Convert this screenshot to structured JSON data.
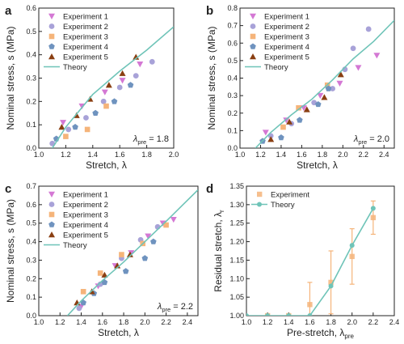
{
  "colors": {
    "exp1": "#d478d4",
    "exp2": "#a8a2d8",
    "exp3": "#f5b47a",
    "exp4": "#6f93bf",
    "exp5": "#8a3f12",
    "theory": "#6fc4b8",
    "axis": "#222222"
  },
  "chart_data": [
    {
      "panel": "a",
      "type": "scatter",
      "xlabel": "Stretch, λ",
      "ylabel": "Nominal stress, s (MPa)",
      "xlim": [
        1.0,
        2.0
      ],
      "ylim": [
        0.0,
        0.6
      ],
      "xticks": [
        "1.0",
        "1.2",
        "1.4",
        "1.6",
        "1.8",
        "2.0"
      ],
      "yticks": [
        "0.0",
        "0.1",
        "0.2",
        "0.3",
        "0.4",
        "0.5",
        "0.6"
      ],
      "annotation": {
        "lambda": "λ",
        "sub": "pre",
        "value": "= 1.8"
      },
      "legend_position": "top-left",
      "series": [
        {
          "name": "Experiment 1",
          "marker": "triangle-down",
          "color_key": "exp1",
          "points": [
            [
              1.18,
              0.11
            ],
            [
              1.32,
              0.18
            ],
            [
              1.49,
              0.24
            ],
            [
              1.62,
              0.29
            ],
            [
              1.75,
              0.36
            ]
          ]
        },
        {
          "name": "Experiment 2",
          "marker": "circle",
          "color_key": "exp2",
          "points": [
            [
              1.1,
              0.02
            ],
            [
              1.22,
              0.08
            ],
            [
              1.35,
              0.13
            ],
            [
              1.48,
              0.2
            ],
            [
              1.6,
              0.26
            ],
            [
              1.72,
              0.31
            ],
            [
              1.84,
              0.37
            ]
          ]
        },
        {
          "name": "Experiment 3",
          "marker": "square",
          "color_key": "exp3",
          "points": [
            [
              1.2,
              0.05
            ],
            [
              1.36,
              0.08
            ],
            [
              1.5,
              0.18
            ]
          ]
        },
        {
          "name": "Experiment 4",
          "marker": "pentagon",
          "color_key": "exp4",
          "points": [
            [
              1.13,
              0.04
            ],
            [
              1.27,
              0.09
            ],
            [
              1.42,
              0.15
            ],
            [
              1.56,
              0.2
            ],
            [
              1.68,
              0.27
            ]
          ]
        },
        {
          "name": "Experiment 5",
          "marker": "triangle-up",
          "color_key": "exp5",
          "points": [
            [
              1.17,
              0.09
            ],
            [
              1.28,
              0.14
            ],
            [
              1.38,
              0.21
            ],
            [
              1.52,
              0.27
            ],
            [
              1.62,
              0.32
            ],
            [
              1.72,
              0.39
            ]
          ]
        },
        {
          "name": "Theory",
          "marker": "line",
          "color_key": "theory",
          "points": [
            [
              1.1,
              0.0
            ],
            [
              1.2,
              0.09
            ],
            [
              1.4,
              0.23
            ],
            [
              1.6,
              0.33
            ],
            [
              1.8,
              0.42
            ],
            [
              2.0,
              0.52
            ]
          ]
        }
      ]
    },
    {
      "panel": "b",
      "type": "scatter",
      "xlabel": "Stretch, λ",
      "ylabel": "Nominal stress, s (MPa)",
      "xlim": [
        1.0,
        2.5
      ],
      "ylim": [
        0.0,
        0.8
      ],
      "xticks": [
        "1.0",
        "1.2",
        "1.4",
        "1.6",
        "1.8",
        "2.0",
        "2.2",
        "2.4"
      ],
      "yticks": [
        "0.0",
        "0.1",
        "0.2",
        "0.3",
        "0.4",
        "0.5",
        "0.6",
        "0.7",
        "0.8"
      ],
      "annotation": {
        "lambda": "λ",
        "sub": "pre",
        "value": "= 2.0"
      },
      "legend_position": "top-left",
      "series": [
        {
          "name": "Experiment 1",
          "marker": "triangle-down",
          "color_key": "exp1",
          "points": [
            [
              1.25,
              0.09
            ],
            [
              1.45,
              0.16
            ],
            [
              1.62,
              0.23
            ],
            [
              1.78,
              0.3
            ],
            [
              1.97,
              0.37
            ],
            [
              2.15,
              0.46
            ],
            [
              2.33,
              0.53
            ]
          ]
        },
        {
          "name": "Experiment 2",
          "marker": "circle",
          "color_key": "exp2",
          "points": [
            [
              1.3,
              0.07
            ],
            [
              1.5,
              0.14
            ],
            [
              1.72,
              0.26
            ],
            [
              1.9,
              0.34
            ],
            [
              2.02,
              0.45
            ],
            [
              2.1,
              0.57
            ],
            [
              2.25,
              0.68
            ]
          ]
        },
        {
          "name": "Experiment 3",
          "marker": "square",
          "color_key": "exp3",
          "points": [
            [
              1.42,
              0.12
            ],
            [
              1.57,
              0.23
            ],
            [
              1.85,
              0.36
            ]
          ]
        },
        {
          "name": "Experiment 4",
          "marker": "pentagon",
          "color_key": "exp4",
          "points": [
            [
              1.22,
              0.04
            ],
            [
              1.4,
              0.06
            ],
            [
              1.58,
              0.16
            ],
            [
              1.76,
              0.25
            ],
            [
              1.86,
              0.34
            ]
          ]
        },
        {
          "name": "Experiment 5",
          "marker": "triangle-up",
          "color_key": "exp5",
          "points": [
            [
              1.3,
              0.05
            ],
            [
              1.48,
              0.15
            ],
            [
              1.65,
              0.22
            ],
            [
              1.82,
              0.29
            ],
            [
              1.98,
              0.42
            ]
          ]
        },
        {
          "name": "Theory",
          "marker": "line",
          "color_key": "theory",
          "points": [
            [
              1.15,
              0.0
            ],
            [
              1.3,
              0.09
            ],
            [
              1.5,
              0.19
            ],
            [
              1.7,
              0.28
            ],
            [
              1.9,
              0.39
            ],
            [
              2.1,
              0.51
            ],
            [
              2.3,
              0.61
            ],
            [
              2.5,
              0.73
            ]
          ]
        }
      ]
    },
    {
      "panel": "c",
      "type": "scatter",
      "xlabel": "Stretch, λ",
      "ylabel": "Nominal stress, s (MPa)",
      "xlim": [
        1.0,
        2.5
      ],
      "ylim": [
        0.0,
        0.7
      ],
      "xticks": [
        "1.0",
        "1.2",
        "1.4",
        "1.6",
        "1.8",
        "2.0",
        "2.2",
        "2.4"
      ],
      "yticks": [
        "0.0",
        "0.1",
        "0.2",
        "0.3",
        "0.4",
        "0.5",
        "0.6",
        "0.7"
      ],
      "annotation": {
        "lambda": "λ",
        "sub": "pre",
        "value": "= 2.2"
      },
      "legend_position": "top-left",
      "series": [
        {
          "name": "Experiment 1",
          "marker": "triangle-down",
          "color_key": "exp1",
          "points": [
            [
              1.4,
              0.05
            ],
            [
              1.56,
              0.16
            ],
            [
              1.72,
              0.27
            ],
            [
              1.87,
              0.34
            ],
            [
              2.03,
              0.43
            ],
            [
              2.17,
              0.5
            ],
            [
              2.27,
              0.52
            ]
          ]
        },
        {
          "name": "Experiment 2",
          "marker": "circle",
          "color_key": "exp2",
          "points": [
            [
              1.38,
              0.04
            ],
            [
              1.58,
              0.17
            ],
            [
              1.78,
              0.31
            ],
            [
              1.96,
              0.41
            ],
            [
              2.12,
              0.48
            ]
          ]
        },
        {
          "name": "Experiment 3",
          "marker": "square",
          "color_key": "exp3",
          "points": [
            [
              1.42,
              0.13
            ],
            [
              1.58,
              0.23
            ],
            [
              1.78,
              0.33
            ],
            [
              1.98,
              0.39
            ],
            [
              2.2,
              0.49
            ]
          ]
        },
        {
          "name": "Experiment 4",
          "marker": "pentagon",
          "color_key": "exp4",
          "points": [
            [
              1.42,
              0.07
            ],
            [
              1.52,
              0.12
            ],
            [
              1.62,
              0.18
            ],
            [
              1.82,
              0.24
            ],
            [
              2.0,
              0.31
            ],
            [
              2.08,
              0.4
            ]
          ]
        },
        {
          "name": "Experiment 5",
          "marker": "triangle-up",
          "color_key": "exp5",
          "points": [
            [
              1.36,
              0.07
            ],
            [
              1.5,
              0.13
            ],
            [
              1.62,
              0.22
            ],
            [
              1.74,
              0.27
            ],
            [
              1.86,
              0.33
            ]
          ]
        },
        {
          "name": "Theory",
          "marker": "line",
          "color_key": "theory",
          "points": [
            [
              1.27,
              0.0
            ],
            [
              1.4,
              0.08
            ],
            [
              1.6,
              0.19
            ],
            [
              1.8,
              0.29
            ],
            [
              2.0,
              0.4
            ],
            [
              2.2,
              0.51
            ],
            [
              2.5,
              0.68
            ]
          ]
        }
      ]
    },
    {
      "panel": "d",
      "type": "scatter",
      "xlabel": "Pre-stretch, λ",
      "xlabel_sub": "pre",
      "ylabel": "Residual stretch, λ",
      "ylabel_sub": "r",
      "xlim": [
        1.0,
        2.4
      ],
      "ylim": [
        1.0,
        1.35
      ],
      "xticks": [
        "1.0",
        "1.2",
        "1.4",
        "1.6",
        "1.8",
        "2.0",
        "2.2",
        "2.4"
      ],
      "yticks": [
        "1.00",
        "1.05",
        "1.10",
        "1.15",
        "1.20",
        "1.25",
        "1.30",
        "1.35"
      ],
      "legend_position": "top-left",
      "series": [
        {
          "name": "Experiment",
          "marker": "square-errorbar",
          "color_key": "exp3",
          "points": [
            [
              1.2,
              1.0
            ],
            [
              1.4,
              1.0
            ],
            [
              1.6,
              1.03
            ],
            [
              1.8,
              1.09
            ],
            [
              2.0,
              1.16
            ],
            [
              2.2,
              1.265
            ]
          ],
          "errors": [
            0,
            0,
            0.06,
            0.085,
            0.075,
            0.045
          ]
        },
        {
          "name": "Theory",
          "marker": "circle-line",
          "color_key": "theory",
          "points": [
            [
              1.0,
              1.0
            ],
            [
              1.2,
              1.0
            ],
            [
              1.4,
              1.0
            ],
            [
              1.6,
              1.0
            ],
            [
              1.8,
              1.08
            ],
            [
              2.0,
              1.19
            ],
            [
              2.2,
              1.29
            ]
          ]
        }
      ]
    }
  ],
  "panel_labels": [
    "a",
    "b",
    "c",
    "d"
  ]
}
